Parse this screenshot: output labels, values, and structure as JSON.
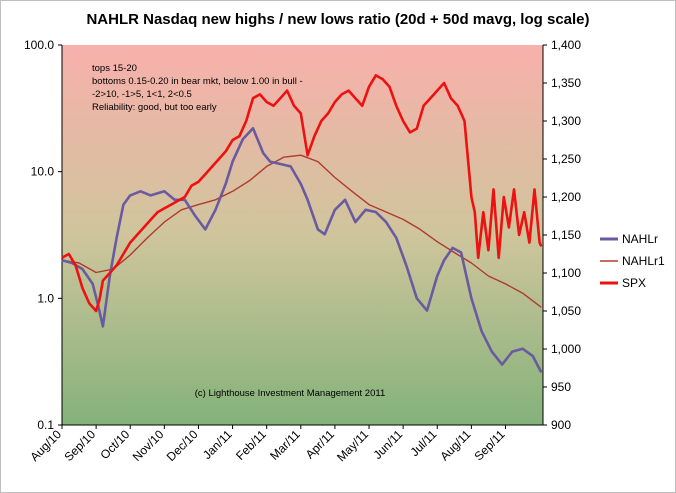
{
  "chart_data": {
    "type": "line",
    "title": "NAHLR Nasdaq new highs / new lows ratio (20d + 50d mavg, log scale)",
    "left_axis": {
      "scale": "log",
      "range": [
        0.1,
        100
      ],
      "ticks": [
        "0.1",
        "1.0",
        "10.0",
        "100.0"
      ]
    },
    "right_axis": {
      "scale": "linear",
      "range": [
        900,
        1400
      ],
      "ticks": [
        "900",
        "950",
        "1,000",
        "1,050",
        "1,100",
        "1,150",
        "1,200",
        "1,250",
        "1,300",
        "1,350",
        "1,400"
      ]
    },
    "x_range": [
      0,
      14.1
    ],
    "x_ticks": [
      "Aug/10",
      "Sep/10",
      "Oct/10",
      "Nov/10",
      "Dec/10",
      "Jan/11",
      "Feb/11",
      "Mar/11",
      "Apr/11",
      "May/11",
      "Jun/11",
      "Jul/11",
      "Aug/11",
      "Sep/11"
    ],
    "annotation": [
      "tops 15-20",
      "bottoms 0.15-0.20 in bear mkt, below 1.00 in bull -",
      "-2>10, -1>5, 1<1, 2<0.5",
      "Reliability: good, but too early"
    ],
    "copyright": "(c) Lighthouse Investment Management 2011",
    "background_gradient": {
      "top": "#f8b0ac",
      "middle": "#cfc59c",
      "bottom": "#84b27a"
    },
    "series": [
      {
        "name": "NAHLr",
        "axis": "left",
        "color": "#6a5aa0",
        "x": [
          0,
          0.3,
          0.6,
          0.9,
          1.05,
          1.2,
          1.4,
          1.6,
          1.8,
          2.0,
          2.3,
          2.6,
          3.0,
          3.3,
          3.6,
          3.9,
          4.2,
          4.5,
          4.8,
          5.0,
          5.3,
          5.6,
          5.9,
          6.1,
          6.4,
          6.7,
          7.0,
          7.2,
          7.5,
          7.7,
          8.0,
          8.3,
          8.6,
          8.9,
          9.2,
          9.5,
          9.8,
          10.1,
          10.4,
          10.7,
          11.0,
          11.2,
          11.45,
          11.7,
          12.0,
          12.3,
          12.6,
          12.9,
          13.2,
          13.5,
          13.8,
          14.05
        ],
        "y": [
          2.0,
          1.9,
          1.7,
          1.3,
          0.9,
          0.6,
          1.5,
          3.0,
          5.5,
          6.5,
          7.0,
          6.5,
          7.0,
          6.0,
          6.0,
          4.5,
          3.5,
          5.0,
          8.0,
          12.0,
          18.0,
          22.0,
          14.0,
          12.0,
          11.5,
          11.0,
          8.0,
          6.0,
          3.5,
          3.2,
          5.0,
          6.0,
          4.0,
          5.0,
          4.8,
          4.0,
          3.0,
          1.8,
          1.0,
          0.8,
          1.5,
          2.0,
          2.5,
          2.3,
          1.0,
          0.55,
          0.38,
          0.3,
          0.38,
          0.4,
          0.35,
          0.26
        ]
      },
      {
        "name": "NAHLr1",
        "axis": "left",
        "color": "#b03a2e",
        "x": [
          0,
          0.5,
          1.0,
          1.5,
          2.0,
          2.5,
          3.0,
          3.5,
          4.0,
          4.5,
          5.0,
          5.5,
          6.0,
          6.5,
          7.0,
          7.5,
          8.0,
          8.5,
          9.0,
          9.5,
          10.0,
          10.5,
          11.0,
          11.5,
          12.0,
          12.5,
          13.0,
          13.5,
          14.05
        ],
        "y": [
          2.0,
          1.9,
          1.6,
          1.7,
          2.2,
          3.0,
          4.0,
          5.0,
          5.5,
          6.0,
          7.0,
          8.5,
          11.0,
          13.0,
          13.5,
          12.0,
          9.0,
          7.0,
          5.5,
          4.8,
          4.2,
          3.5,
          2.8,
          2.3,
          1.9,
          1.5,
          1.3,
          1.1,
          0.85
        ]
      },
      {
        "name": "SPX",
        "axis": "right",
        "color": "#ee1111",
        "x": [
          0,
          0.2,
          0.4,
          0.6,
          0.8,
          1.0,
          1.1,
          1.2,
          1.4,
          1.6,
          1.8,
          2.0,
          2.2,
          2.4,
          2.6,
          2.8,
          3.0,
          3.2,
          3.4,
          3.6,
          3.8,
          4.0,
          4.2,
          4.4,
          4.6,
          4.8,
          5.0,
          5.2,
          5.4,
          5.6,
          5.8,
          6.0,
          6.2,
          6.4,
          6.6,
          6.8,
          7.0,
          7.2,
          7.4,
          7.6,
          7.8,
          8.0,
          8.2,
          8.4,
          8.6,
          8.8,
          9.0,
          9.2,
          9.4,
          9.6,
          9.8,
          10.0,
          10.2,
          10.4,
          10.6,
          10.8,
          11.0,
          11.2,
          11.4,
          11.6,
          11.8,
          12.0,
          12.1,
          12.2,
          12.35,
          12.5,
          12.65,
          12.8,
          12.95,
          13.1,
          13.25,
          13.4,
          13.55,
          13.7,
          13.85,
          14.0,
          14.05
        ],
        "y": [
          1120,
          1125,
          1110,
          1080,
          1060,
          1050,
          1065,
          1090,
          1100,
          1110,
          1125,
          1140,
          1150,
          1160,
          1170,
          1180,
          1185,
          1190,
          1195,
          1200,
          1215,
          1220,
          1230,
          1240,
          1250,
          1260,
          1275,
          1280,
          1300,
          1330,
          1335,
          1325,
          1320,
          1330,
          1340,
          1320,
          1310,
          1255,
          1280,
          1300,
          1310,
          1325,
          1335,
          1340,
          1330,
          1320,
          1345,
          1360,
          1355,
          1345,
          1320,
          1300,
          1285,
          1290,
          1320,
          1330,
          1340,
          1350,
          1330,
          1320,
          1300,
          1200,
          1180,
          1120,
          1180,
          1130,
          1210,
          1120,
          1200,
          1160,
          1210,
          1150,
          1180,
          1140,
          1210,
          1140,
          1135
        ]
      }
    ]
  }
}
